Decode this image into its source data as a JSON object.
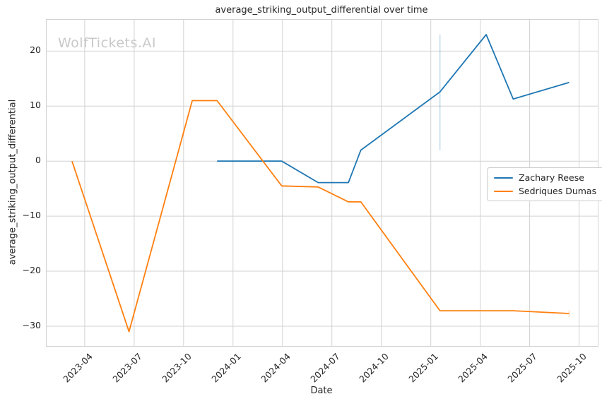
{
  "figure": {
    "watermark": "WolfTickets.AI"
  },
  "colors": {
    "grid": "#d2d2d2",
    "spine": "#d2d2d2",
    "text": "#262626",
    "watermark": "#c9c9c9",
    "series_blue": "#1f77b4",
    "series_orange": "#ff7f0e"
  },
  "chart_data": {
    "type": "line",
    "title": "average_striking_output_differential over time",
    "xlabel": "Date",
    "ylabel": "average_striking_output_differential",
    "grid": true,
    "legend_position": "center right",
    "xlim": [
      "2023-01-22",
      "2025-11-05"
    ],
    "ylim": [
      -33.6,
      25.7
    ],
    "x_ticks": [
      "2023-04",
      "2023-07",
      "2023-10",
      "2024-01",
      "2024-04",
      "2024-07",
      "2024-10",
      "2025-01",
      "2025-04",
      "2025-07",
      "2025-10"
    ],
    "y_ticks": [
      {
        "v": 20,
        "label": "20"
      },
      {
        "v": 10,
        "label": "10"
      },
      {
        "v": 0,
        "label": "0"
      },
      {
        "v": -10,
        "label": "−10"
      },
      {
        "v": -20,
        "label": "−20"
      },
      {
        "v": -30,
        "label": "−30"
      }
    ],
    "series": [
      {
        "name": "Zachary Reese",
        "color": "#1f77b4",
        "points": [
          [
            "2023-12-02",
            0.0
          ],
          [
            "2024-03-30",
            0.0
          ],
          [
            "2024-06-06",
            -3.9
          ],
          [
            "2024-08-01",
            -3.9
          ],
          [
            "2024-08-24",
            2.0
          ],
          [
            "2025-01-18",
            12.6
          ],
          [
            "2025-04-12",
            23.0
          ],
          [
            "2025-06-01",
            11.3
          ],
          [
            "2025-09-13",
            14.3
          ]
        ],
        "error_bars": [
          [
            "2025-01-18",
            2.0,
            23.0
          ]
        ]
      },
      {
        "name": "Sedriques Dumas",
        "color": "#ff7f0e",
        "points": [
          [
            "2023-03-08",
            0.0
          ],
          [
            "2023-06-22",
            -31.0
          ],
          [
            "2023-10-17",
            11.0
          ],
          [
            "2023-12-02",
            11.0
          ],
          [
            "2024-03-30",
            -4.5
          ],
          [
            "2024-06-06",
            -4.7
          ],
          [
            "2024-08-01",
            -7.4
          ],
          [
            "2024-08-24",
            -7.4
          ],
          [
            "2025-01-18",
            -27.2
          ],
          [
            "2025-06-01",
            -27.2
          ],
          [
            "2025-09-13",
            -27.7
          ]
        ],
        "error_bars": [
          [
            "2025-09-13",
            -28.3,
            -27.1
          ]
        ]
      }
    ]
  }
}
